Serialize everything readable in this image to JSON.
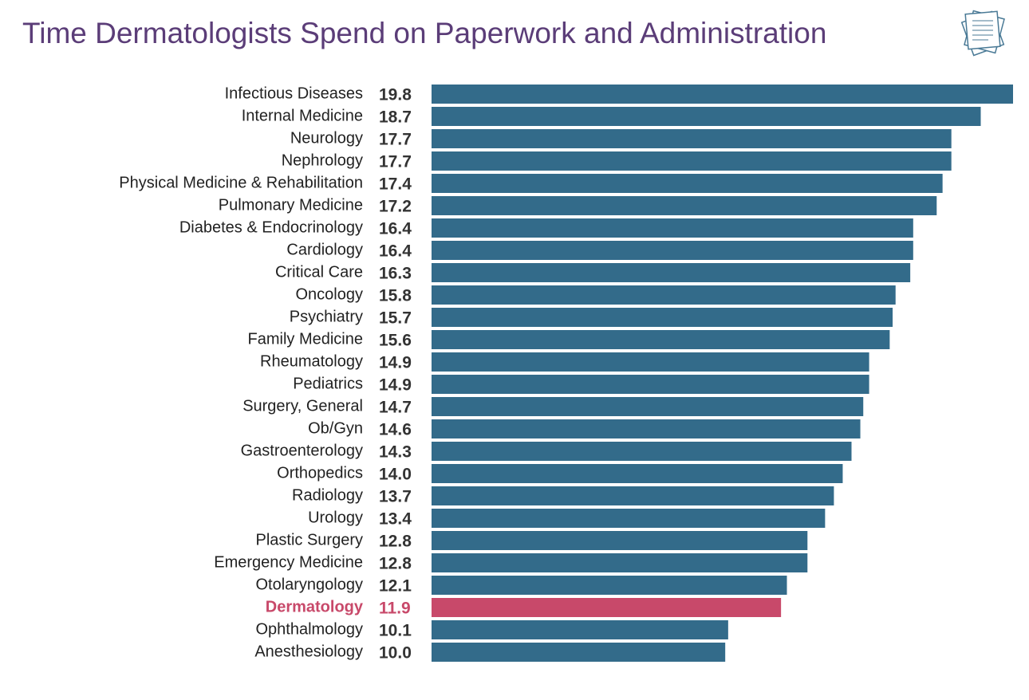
{
  "chart_data": {
    "type": "bar",
    "orientation": "horizontal",
    "title": "Time Dermatologists Spend on Paperwork and Administration",
    "categories": [
      "Infectious Diseases",
      "Internal Medicine",
      "Neurology",
      "Nephrology",
      "Physical Medicine & Rehabilitation",
      "Pulmonary Medicine",
      "Diabetes & Endocrinology",
      "Cardiology",
      "Critical Care",
      "Oncology",
      "Psychiatry",
      "Family Medicine",
      "Rheumatology",
      "Pediatrics",
      "Surgery, General",
      "Ob/Gyn",
      "Gastroenterology",
      "Orthopedics",
      "Radiology",
      "Urology",
      "Plastic Surgery",
      "Emergency Medicine",
      "Otolaryngology",
      "Dermatology",
      "Ophthalmology",
      "Anesthesiology"
    ],
    "values": [
      19.8,
      18.7,
      17.7,
      17.7,
      17.4,
      17.2,
      16.4,
      16.4,
      16.3,
      15.8,
      15.7,
      15.6,
      14.9,
      14.9,
      14.7,
      14.6,
      14.3,
      14.0,
      13.7,
      13.4,
      12.8,
      12.8,
      12.1,
      11.9,
      10.1,
      10.0
    ],
    "value_labels": [
      "19.8",
      "18.7",
      "17.7",
      "17.7",
      "17.4",
      "17.2",
      "16.4",
      "16.4",
      "16.3",
      "15.8",
      "15.7",
      "15.6",
      "14.9",
      "14.9",
      "14.7",
      "14.6",
      "14.3",
      "14.0",
      "13.7",
      "13.4",
      "12.8",
      "12.8",
      "12.1",
      "11.9",
      "10.1",
      "10.0"
    ],
    "color": "#336b8a",
    "colors": [
      "#336b8a",
      "#336b8a",
      "#336b8a",
      "#336b8a",
      "#336b8a",
      "#336b8a",
      "#336b8a",
      "#336b8a",
      "#336b8a",
      "#336b8a",
      "#336b8a",
      "#336b8a",
      "#336b8a",
      "#336b8a",
      "#336b8a",
      "#336b8a",
      "#336b8a",
      "#336b8a",
      "#336b8a",
      "#336b8a",
      "#336b8a",
      "#336b8a",
      "#336b8a",
      "#c8496a",
      "#336b8a",
      "#336b8a"
    ],
    "xlim": [
      0,
      19.8
    ]
  }
}
